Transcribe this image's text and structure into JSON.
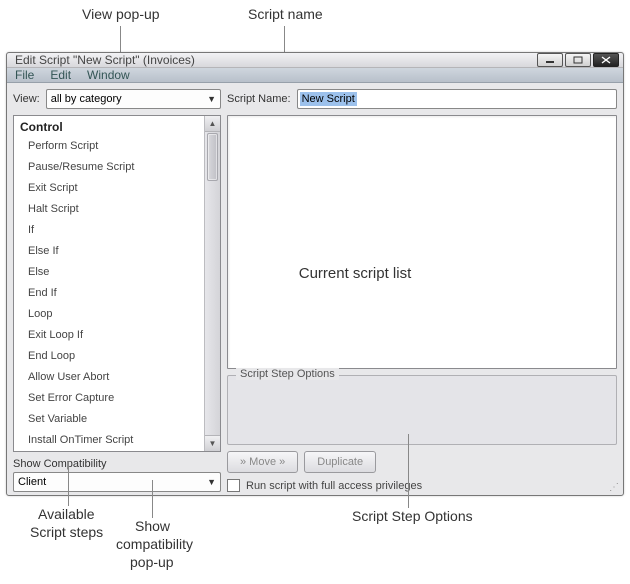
{
  "callouts": {
    "view_popup": "View pop-up",
    "script_name": "Script name",
    "current_script_list": "Current script list",
    "available_steps_l1": "Available",
    "available_steps_l2": "Script steps",
    "show_compat_l1": "Show",
    "show_compat_l2": "compatibility",
    "show_compat_l3": "pop-up",
    "script_step_options": "Script Step Options"
  },
  "window": {
    "title": "Edit Script \"New Script\" (Invoices)"
  },
  "menubar": {
    "file": "File",
    "edit": "Edit",
    "window": "Window"
  },
  "left": {
    "view_label": "View:",
    "view_value": "all by category",
    "list_header": "Control",
    "items": [
      "Perform Script",
      "Pause/Resume Script",
      "Exit Script",
      "Halt Script",
      "If",
      "Else If",
      "Else",
      "End If",
      "Loop",
      "Exit Loop If",
      "End Loop",
      "Allow User Abort",
      "Set Error Capture",
      "Set Variable",
      "Install OnTimer Script"
    ],
    "compat_label": "Show Compatibility",
    "compat_value": "Client"
  },
  "right": {
    "name_label": "Script Name:",
    "name_value": "New Script",
    "opts_title": "Script Step Options",
    "move_btn": "»  Move  »",
    "dup_btn": "Duplicate",
    "privs": "Run script with full access privileges"
  }
}
